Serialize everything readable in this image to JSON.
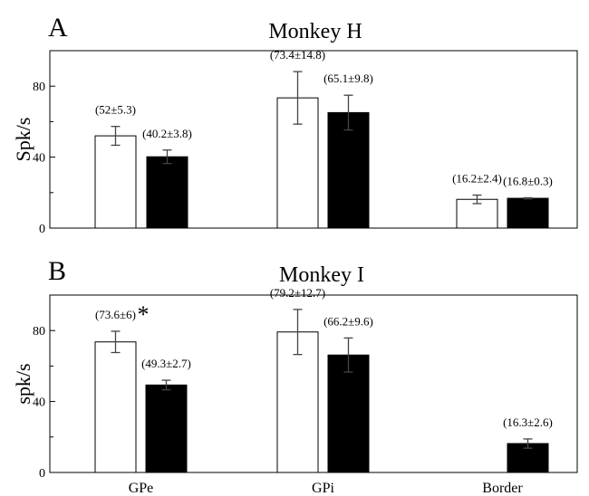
{
  "chart_data": [
    {
      "type": "bar",
      "panel_label": "A",
      "title": "Monkey H",
      "ylabel": "Spk/s",
      "ylim": [
        0,
        100
      ],
      "yticks": [
        0,
        40,
        80
      ],
      "categories": [
        "GPe",
        "GPi",
        "Border"
      ],
      "series": [
        {
          "fill": "#ffffff",
          "values": [
            52,
            73.4,
            16.2
          ],
          "errors": [
            5.3,
            14.8,
            2.4
          ],
          "labels": [
            "(52±5.3)",
            "(73.4±14.8)",
            "(16.2±2.4)"
          ]
        },
        {
          "fill": "#000000",
          "values": [
            40.2,
            65.1,
            16.8
          ],
          "errors": [
            3.8,
            9.8,
            0.3
          ],
          "labels": [
            "(40.2±3.8)",
            "(65.1±9.8)",
            "(16.8±0.3)"
          ]
        }
      ],
      "annotations": []
    },
    {
      "type": "bar",
      "panel_label": "B",
      "title": "Monkey I",
      "ylabel": "spk/s",
      "ylim": [
        0,
        100
      ],
      "yticks": [
        0,
        40,
        80
      ],
      "categories": [
        "GPe",
        "GPi",
        "Border"
      ],
      "xtick_labels": [
        "GPe",
        "GPi",
        "Border"
      ],
      "series": [
        {
          "fill": "#ffffff",
          "values": [
            73.6,
            79.2,
            null
          ],
          "errors": [
            6,
            12.7,
            null
          ],
          "labels": [
            "(73.6±6)",
            "(79.2±12.7)",
            null
          ]
        },
        {
          "fill": "#000000",
          "values": [
            49.3,
            66.2,
            16.3
          ],
          "errors": [
            2.7,
            9.6,
            2.6
          ],
          "labels": [
            "(49.3±2.7)",
            "(66.2±9.6)",
            "(16.3±2.6)"
          ]
        }
      ],
      "annotations": [
        {
          "text": "*",
          "category": "GPe",
          "series": 0
        }
      ]
    }
  ]
}
